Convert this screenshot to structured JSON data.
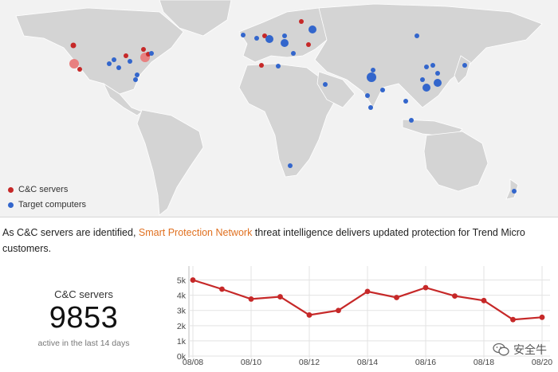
{
  "legend": {
    "cc_label": "C&C servers",
    "target_label": "Target computers",
    "cc_color": "#c62828",
    "target_color": "#3366cc"
  },
  "description": {
    "before": "As C&C servers are identified, ",
    "link": "Smart Protection Network",
    "after": " threat intelligence delivers updated protection for Trend Micro customers."
  },
  "stat": {
    "title": "C&C servers",
    "value": "9853",
    "subtitle": "active in the last 14 days"
  },
  "watermark": {
    "text": "安全牛",
    "icon": "wechat-icon"
  },
  "chart_data": {
    "type": "line",
    "title": "",
    "xlabel": "",
    "ylabel": "",
    "x": [
      "08/08",
      "08/09",
      "08/10",
      "08/11",
      "08/12",
      "08/13",
      "08/14",
      "08/15",
      "08/16",
      "08/17",
      "08/18",
      "08/19",
      "08/20"
    ],
    "x_tick_labels": [
      "08/08",
      "08/10",
      "08/12",
      "08/14",
      "08/16",
      "08/18",
      "08/20"
    ],
    "y_tick_labels": [
      "0k",
      "1k",
      "2k",
      "3k",
      "4k",
      "5k"
    ],
    "ylim": [
      0,
      5500
    ],
    "grid": true,
    "series": [
      {
        "color": "#c62828",
        "values": [
          5000,
          4400,
          3750,
          3900,
          2700,
          3000,
          4250,
          3850,
          4500,
          3950,
          3650,
          2400,
          2550
        ]
      }
    ]
  }
}
